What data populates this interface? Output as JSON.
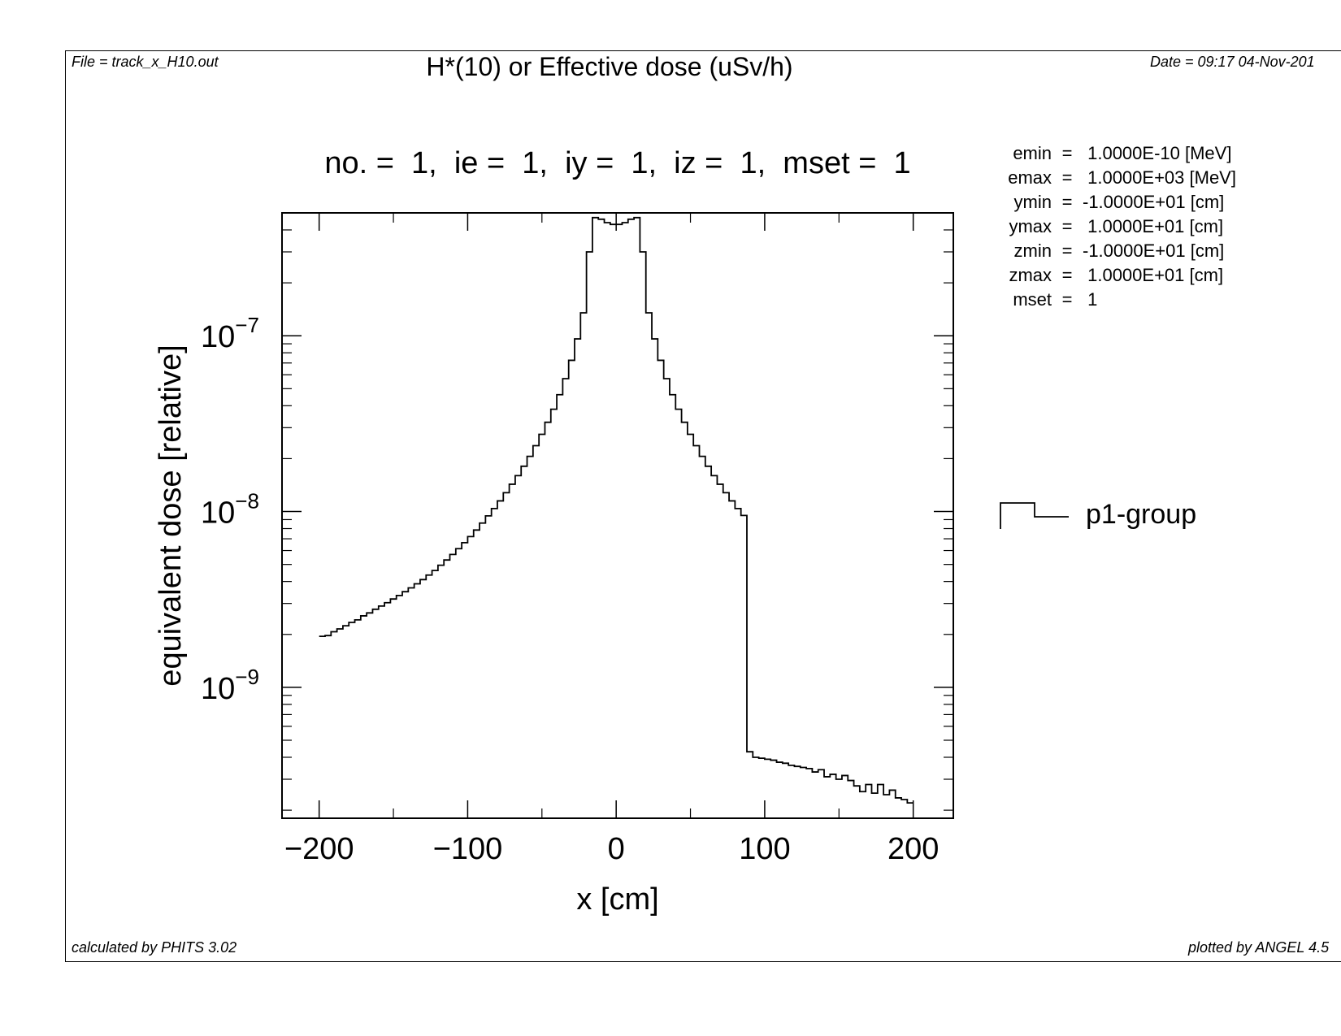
{
  "header": {
    "file": "File = track_x_H10.out",
    "title": "H*(10) or Effective dose (uSv/h)",
    "date": "Date = 09:17 04-Nov-201"
  },
  "footer": {
    "calculated": "calculated by PHITS 3.02",
    "plotted": "plotted by ANGEL 4.5"
  },
  "subtitle": "no. =  1,  ie =  1,  iy =  1,  iz =  1,  mset =  1",
  "params": [
    {
      "name": "emin",
      "value": " 1.0000E-10 [MeV]"
    },
    {
      "name": "emax",
      "value": " 1.0000E+03 [MeV]"
    },
    {
      "name": "ymin",
      "value": "-1.0000E+01 [cm]"
    },
    {
      "name": "ymax",
      "value": " 1.0000E+01 [cm]"
    },
    {
      "name": "zmin",
      "value": "-1.0000E+01 [cm]"
    },
    {
      "name": "zmax",
      "value": " 1.0000E+01 [cm]"
    },
    {
      "name": "mset",
      "value": " 1"
    }
  ],
  "chart_data": {
    "type": "line",
    "style": "step",
    "xlabel": "x [cm]",
    "ylabel": "equivalent dose [relative]",
    "xlim": [
      -225,
      227
    ],
    "ylim": [
      1.8e-10,
      5e-07
    ],
    "yscale": "log",
    "x_ticks": [
      -200,
      -100,
      0,
      100,
      200
    ],
    "x_tick_labels": [
      "−200",
      "−100",
      "0",
      "100",
      "200"
    ],
    "y_ticks": [
      1e-09,
      1e-08,
      1e-07
    ],
    "y_tick_labels": [
      {
        "base": "10",
        "exp": "−9"
      },
      {
        "base": "10",
        "exp": "−8"
      },
      {
        "base": "10",
        "exp": "−7"
      }
    ],
    "legend_position": "right",
    "series": [
      {
        "name": "p1-group",
        "bin_width": 4,
        "x": [
          -198,
          -194,
          -190,
          -186,
          -182,
          -178,
          -174,
          -170,
          -166,
          -162,
          -158,
          -154,
          -150,
          -146,
          -142,
          -138,
          -134,
          -130,
          -126,
          -122,
          -118,
          -114,
          -110,
          -106,
          -102,
          -98,
          -94,
          -90,
          -86,
          -82,
          -78,
          -74,
          -70,
          -66,
          -62,
          -58,
          -54,
          -50,
          -46,
          -42,
          -38,
          -34,
          -30,
          -26,
          -22,
          -18,
          -14,
          -10,
          -6,
          -2,
          2,
          6,
          10,
          14,
          18,
          22,
          26,
          30,
          34,
          38,
          42,
          46,
          50,
          54,
          58,
          62,
          66,
          70,
          74,
          78,
          82,
          86,
          90,
          94,
          98,
          102,
          106,
          110,
          114,
          118,
          122,
          126,
          130,
          134,
          138,
          142,
          146,
          150,
          154,
          158,
          162,
          166,
          170,
          174,
          178,
          182,
          186,
          190,
          194,
          198
        ],
        "y": [
          1.95e-09,
          1.97e-09,
          2.07e-09,
          2.15e-09,
          2.24e-09,
          2.34e-09,
          2.42e-09,
          2.55e-09,
          2.65e-09,
          2.78e-09,
          2.9e-09,
          3.03e-09,
          3.18e-09,
          3.33e-09,
          3.5e-09,
          3.68e-09,
          3.88e-09,
          4.1e-09,
          4.35e-09,
          4.62e-09,
          4.95e-09,
          5.3e-09,
          5.7e-09,
          6.15e-09,
          6.65e-09,
          7.2e-09,
          7.85e-09,
          8.6e-09,
          9.45e-09,
          1.04e-08,
          1.15e-08,
          1.28e-08,
          1.43e-08,
          1.6e-08,
          1.81e-08,
          2.06e-08,
          2.37e-08,
          2.75e-08,
          3.22e-08,
          3.82e-08,
          4.62e-08,
          5.7e-08,
          7.25e-08,
          9.6e-08,
          1.35e-07,
          3e-07,
          4.7e-07,
          4.6e-07,
          4.4e-07,
          4.3e-07,
          4.3e-07,
          4.4e-07,
          4.6e-07,
          4.7e-07,
          3e-07,
          1.35e-07,
          9.6e-08,
          7.25e-08,
          5.7e-08,
          4.62e-08,
          3.82e-08,
          3.22e-08,
          2.75e-08,
          2.37e-08,
          2.06e-08,
          1.81e-08,
          1.6e-08,
          1.43e-08,
          1.28e-08,
          1.15e-08,
          1.04e-08,
          9.5e-09,
          4.3e-10,
          4e-10,
          3.95e-10,
          3.9e-10,
          3.85e-10,
          3.75e-10,
          3.7e-10,
          3.6e-10,
          3.55e-10,
          3.5e-10,
          3.45e-10,
          3.3e-10,
          3.4e-10,
          3.1e-10,
          3.2e-10,
          3e-10,
          3.15e-10,
          2.95e-10,
          2.75e-10,
          2.55e-10,
          2.8e-10,
          2.5e-10,
          2.8e-10,
          2.45e-10,
          2.6e-10,
          2.35e-10,
          2.3e-10,
          2.2e-10
        ]
      }
    ]
  }
}
